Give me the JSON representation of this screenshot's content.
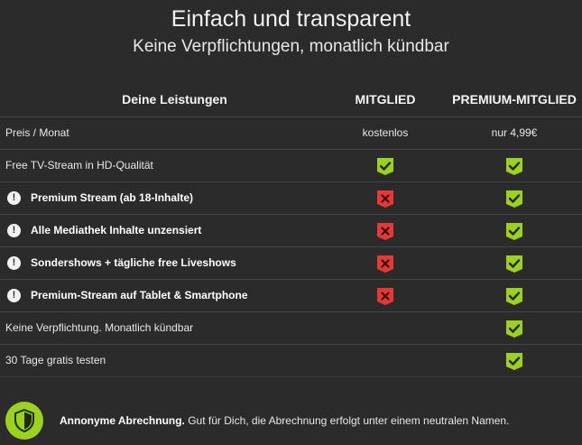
{
  "header": {
    "title": "Einfach und transparent",
    "subtitle": "Keine Verpflichtungen, monatlich kündbar"
  },
  "table": {
    "columns": {
      "features": "Deine Leistungen",
      "member": "MITGLIED",
      "premium": "PREMIUM-MITGLIED"
    },
    "price_row": {
      "label": "Preis / Monat",
      "member": "kostenlos",
      "premium": "nur 4,99€"
    },
    "rows": [
      {
        "label": "Free TV-Stream in HD-Qualität",
        "highlight": false,
        "member": "yes",
        "premium": "yes"
      },
      {
        "label": "Premium Stream (ab 18-Inhalte)",
        "highlight": true,
        "member": "no",
        "premium": "yes"
      },
      {
        "label": "Alle Mediathek Inhalte unzensiert",
        "highlight": true,
        "member": "no",
        "premium": "yes"
      },
      {
        "label": "Sondershows + tägliche free Liveshows",
        "highlight": true,
        "member": "no",
        "premium": "yes"
      },
      {
        "label": "Premium-Stream auf Tablet & Smartphone",
        "highlight": true,
        "member": "no",
        "premium": "yes"
      },
      {
        "label": "Keine Verpflichtung. Monatlich kündbar",
        "highlight": false,
        "member": "none",
        "premium": "yes"
      },
      {
        "label": "30 Tage gratis testen",
        "highlight": false,
        "member": "none",
        "premium": "yes"
      }
    ],
    "warn_glyph": "!"
  },
  "footer": {
    "icon": "shield-check-icon",
    "bold_text": "Annonyme Abrechnung.",
    "text": " Gut für Dich, die Abrechnung erfolgt unter einem neutralen Namen."
  },
  "colors": {
    "background": "#2b2b2b",
    "check": "#9bd21e",
    "cross": "#e53935",
    "divider": "#434343"
  }
}
